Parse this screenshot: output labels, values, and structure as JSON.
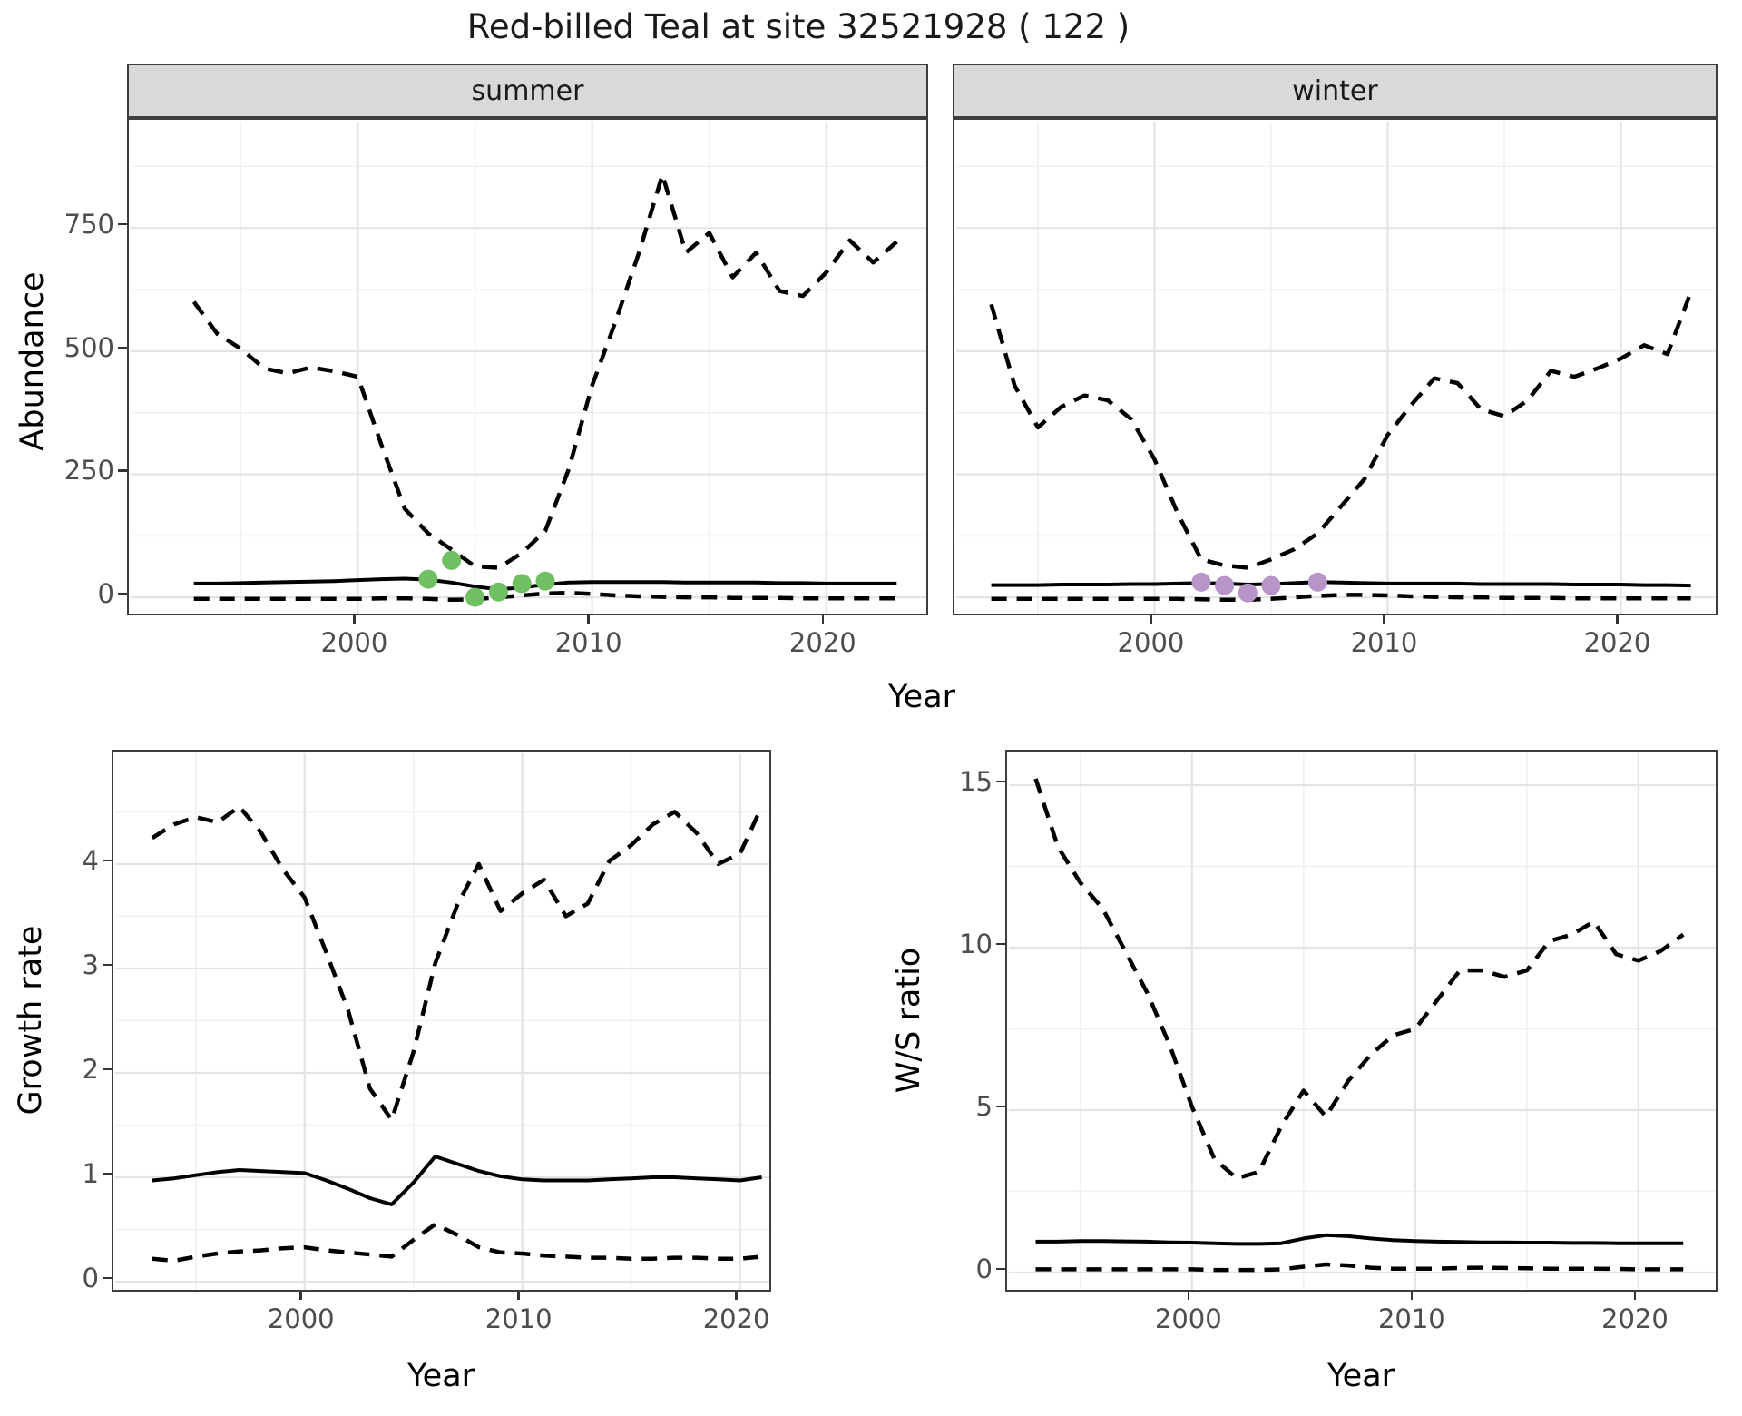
{
  "title": "Red-billed Teal at site 32521928 ( 122 )",
  "colors": {
    "summer_points": "#71bf63",
    "winter_points": "#b795c8",
    "line": "#000000",
    "strip_background": "#d9d9d9",
    "grid_major": "#e4e4e4",
    "grid_minor": "#f0f0f0",
    "tick_text": "#4d4d4d"
  },
  "chart_data": [
    {
      "id": "summer-abundance",
      "type": "line",
      "facet": "summer",
      "xlabel": "Year",
      "ylabel": "Abundance",
      "legend": "none",
      "grid": true,
      "xlim": [
        1990.3,
        2024.5
      ],
      "ylim": [
        -44,
        966
      ],
      "xticks": [
        2000,
        2010,
        2020
      ],
      "yticks": [
        0,
        250,
        500,
        750
      ],
      "x": [
        1993,
        1994,
        1995,
        1996,
        1997,
        1998,
        1999,
        2000,
        2001,
        2002,
        2003,
        2004,
        2005,
        2006,
        2007,
        2008,
        2009,
        2010,
        2011,
        2012,
        2013,
        2014,
        2015,
        2016,
        2017,
        2018,
        2019,
        2020,
        2021,
        2022,
        2023
      ],
      "series": [
        {
          "name": "upper-ci",
          "style": "dashed",
          "values": [
            600,
            535,
            505,
            465,
            455,
            467,
            459,
            448,
            310,
            180,
            130,
            97,
            63,
            60,
            90,
            135,
            260,
            430,
            560,
            700,
            858,
            700,
            740,
            650,
            700,
            622,
            612,
            660,
            725,
            680,
            722
          ]
        },
        {
          "name": "median",
          "style": "solid",
          "values": [
            28,
            28,
            29,
            30,
            31,
            32,
            33,
            35,
            37,
            38,
            36,
            30,
            22,
            16,
            20,
            26,
            30,
            31,
            31,
            31,
            31,
            30,
            30,
            30,
            30,
            29,
            29,
            28,
            28,
            28,
            28
          ]
        },
        {
          "name": "lower-ci",
          "style": "dashed",
          "values": [
            -3,
            -3,
            -3,
            -3,
            -3,
            -3,
            -3,
            -3,
            -2,
            -2,
            -3,
            -5,
            -4,
            0,
            4,
            8,
            9,
            7,
            4,
            2,
            1,
            0,
            0,
            -1,
            -1,
            -1,
            -2,
            -2,
            -2,
            -2,
            -2
          ]
        }
      ],
      "points": {
        "name": "observed-counts",
        "color": "#71bf63",
        "x": [
          2003,
          2004,
          2005,
          2006,
          2007,
          2008
        ],
        "y": [
          37,
          75,
          0,
          11,
          28,
          33
        ]
      }
    },
    {
      "id": "winter-abundance",
      "type": "line",
      "facet": "winter",
      "xlabel": "Year",
      "ylabel": "Abundance",
      "legend": "none",
      "grid": true,
      "xlim": [
        1991.5,
        2024.3
      ],
      "ylim": [
        -44,
        966
      ],
      "xticks": [
        2000,
        2010,
        2020
      ],
      "yticks": [
        0,
        250,
        500,
        750
      ],
      "x": [
        1993,
        1994,
        1995,
        1996,
        1997,
        1998,
        1999,
        2000,
        2001,
        2002,
        2003,
        2004,
        2005,
        2006,
        2007,
        2008,
        2009,
        2010,
        2011,
        2012,
        2013,
        2014,
        2015,
        2016,
        2017,
        2018,
        2019,
        2020,
        2021,
        2022,
        2023
      ],
      "series": [
        {
          "name": "upper-ci",
          "style": "dashed",
          "values": [
            595,
            430,
            345,
            387,
            410,
            400,
            362,
            280,
            170,
            77,
            65,
            60,
            77,
            98,
            130,
            185,
            240,
            330,
            390,
            445,
            435,
            382,
            368,
            400,
            460,
            448,
            465,
            485,
            512,
            494,
            620
          ]
        },
        {
          "name": "median",
          "style": "solid",
          "values": [
            25,
            25,
            25,
            26,
            26,
            26,
            27,
            27,
            28,
            29,
            28,
            26,
            27,
            29,
            31,
            30,
            29,
            28,
            28,
            28,
            28,
            27,
            27,
            27,
            27,
            26,
            26,
            26,
            25,
            25,
            24
          ]
        },
        {
          "name": "lower-ci",
          "style": "dashed",
          "values": [
            -3,
            -3,
            -3,
            -3,
            -3,
            -3,
            -3,
            -3,
            -3,
            -4,
            -5,
            -5,
            -3,
            0,
            3,
            5,
            5,
            4,
            2,
            1,
            0,
            0,
            -1,
            -1,
            -1,
            -2,
            -2,
            -2,
            -2,
            -2,
            -2
          ]
        }
      ],
      "points": {
        "name": "observed-counts",
        "color": "#b795c8",
        "x": [
          2002,
          2003,
          2004,
          2005,
          2007
        ],
        "y": [
          31,
          24,
          9,
          24,
          31
        ]
      }
    },
    {
      "id": "growth-rate",
      "type": "line",
      "facet": null,
      "xlabel": "Year",
      "ylabel": "Growth rate",
      "legend": "none",
      "grid": true,
      "xlim": [
        1991.3,
        2021.6
      ],
      "ylim": [
        -0.13,
        5.06
      ],
      "xticks": [
        2000,
        2010,
        2020
      ],
      "yticks": [
        0,
        1,
        2,
        3,
        4
      ],
      "x": [
        1993,
        1994,
        1995,
        1996,
        1997,
        1998,
        1999,
        2000,
        2001,
        2002,
        2003,
        2004,
        2005,
        2006,
        2007,
        2008,
        2009,
        2010,
        2011,
        2012,
        2013,
        2014,
        2015,
        2016,
        2017,
        2018,
        2019,
        2020,
        2021
      ],
      "series": [
        {
          "name": "upper-ci",
          "style": "dashed",
          "values": [
            4.25,
            4.38,
            4.45,
            4.4,
            4.55,
            4.3,
            3.95,
            3.68,
            3.15,
            2.6,
            1.85,
            1.55,
            2.2,
            3.05,
            3.6,
            4.0,
            3.55,
            3.72,
            3.85,
            3.5,
            3.62,
            4.03,
            4.18,
            4.38,
            4.5,
            4.3,
            4.0,
            4.1,
            4.55
          ]
        },
        {
          "name": "median",
          "style": "solid",
          "values": [
            0.97,
            0.99,
            1.02,
            1.05,
            1.07,
            1.06,
            1.05,
            1.04,
            0.97,
            0.89,
            0.8,
            0.74,
            0.95,
            1.2,
            1.13,
            1.06,
            1.01,
            0.98,
            0.97,
            0.97,
            0.97,
            0.98,
            0.99,
            1.0,
            1.0,
            0.99,
            0.98,
            0.97,
            1.0
          ]
        },
        {
          "name": "lower-ci",
          "style": "dashed",
          "values": [
            0.22,
            0.2,
            0.24,
            0.27,
            0.29,
            0.3,
            0.32,
            0.33,
            0.3,
            0.28,
            0.26,
            0.24,
            0.4,
            0.55,
            0.45,
            0.33,
            0.28,
            0.27,
            0.25,
            0.24,
            0.23,
            0.23,
            0.22,
            0.22,
            0.23,
            0.23,
            0.22,
            0.22,
            0.24
          ]
        }
      ],
      "points": null
    },
    {
      "id": "ws-ratio",
      "type": "line",
      "facet": null,
      "xlabel": "Year",
      "ylabel": "W/S ratio",
      "legend": "none",
      "grid": true,
      "xlim": [
        1991.8,
        2023.7
      ],
      "ylim": [
        -0.7,
        15.98
      ],
      "xticks": [
        2000,
        2010,
        2020
      ],
      "yticks": [
        0,
        5,
        10,
        15
      ],
      "x": [
        1993,
        1994,
        1995,
        1996,
        1997,
        1998,
        1999,
        2000,
        2001,
        2002,
        2003,
        2004,
        2005,
        2006,
        2007,
        2008,
        2009,
        2010,
        2011,
        2012,
        2013,
        2014,
        2015,
        2016,
        2017,
        2018,
        2019,
        2020,
        2021,
        2022
      ],
      "series": [
        {
          "name": "upper-ci",
          "style": "dashed",
          "values": [
            15.2,
            13.1,
            12.0,
            11.2,
            9.9,
            8.6,
            7.0,
            5.1,
            3.5,
            2.9,
            3.1,
            4.5,
            5.6,
            4.8,
            5.9,
            6.7,
            7.3,
            7.5,
            8.4,
            9.3,
            9.3,
            9.1,
            9.3,
            10.2,
            10.4,
            10.8,
            9.8,
            9.6,
            9.9,
            10.4
          ]
        },
        {
          "name": "median",
          "style": "solid",
          "values": [
            0.95,
            0.95,
            0.97,
            0.97,
            0.96,
            0.95,
            0.93,
            0.92,
            0.9,
            0.88,
            0.88,
            0.9,
            1.05,
            1.15,
            1.12,
            1.05,
            1.0,
            0.97,
            0.95,
            0.94,
            0.93,
            0.93,
            0.92,
            0.92,
            0.91,
            0.91,
            0.9,
            0.9,
            0.9,
            0.9
          ]
        },
        {
          "name": "lower-ci",
          "style": "dashed",
          "values": [
            0.1,
            0.1,
            0.1,
            0.1,
            0.1,
            0.1,
            0.1,
            0.1,
            0.08,
            0.08,
            0.08,
            0.1,
            0.18,
            0.25,
            0.22,
            0.15,
            0.12,
            0.12,
            0.12,
            0.14,
            0.15,
            0.14,
            0.13,
            0.12,
            0.12,
            0.12,
            0.11,
            0.1,
            0.1,
            0.1
          ]
        }
      ],
      "points": null
    }
  ]
}
